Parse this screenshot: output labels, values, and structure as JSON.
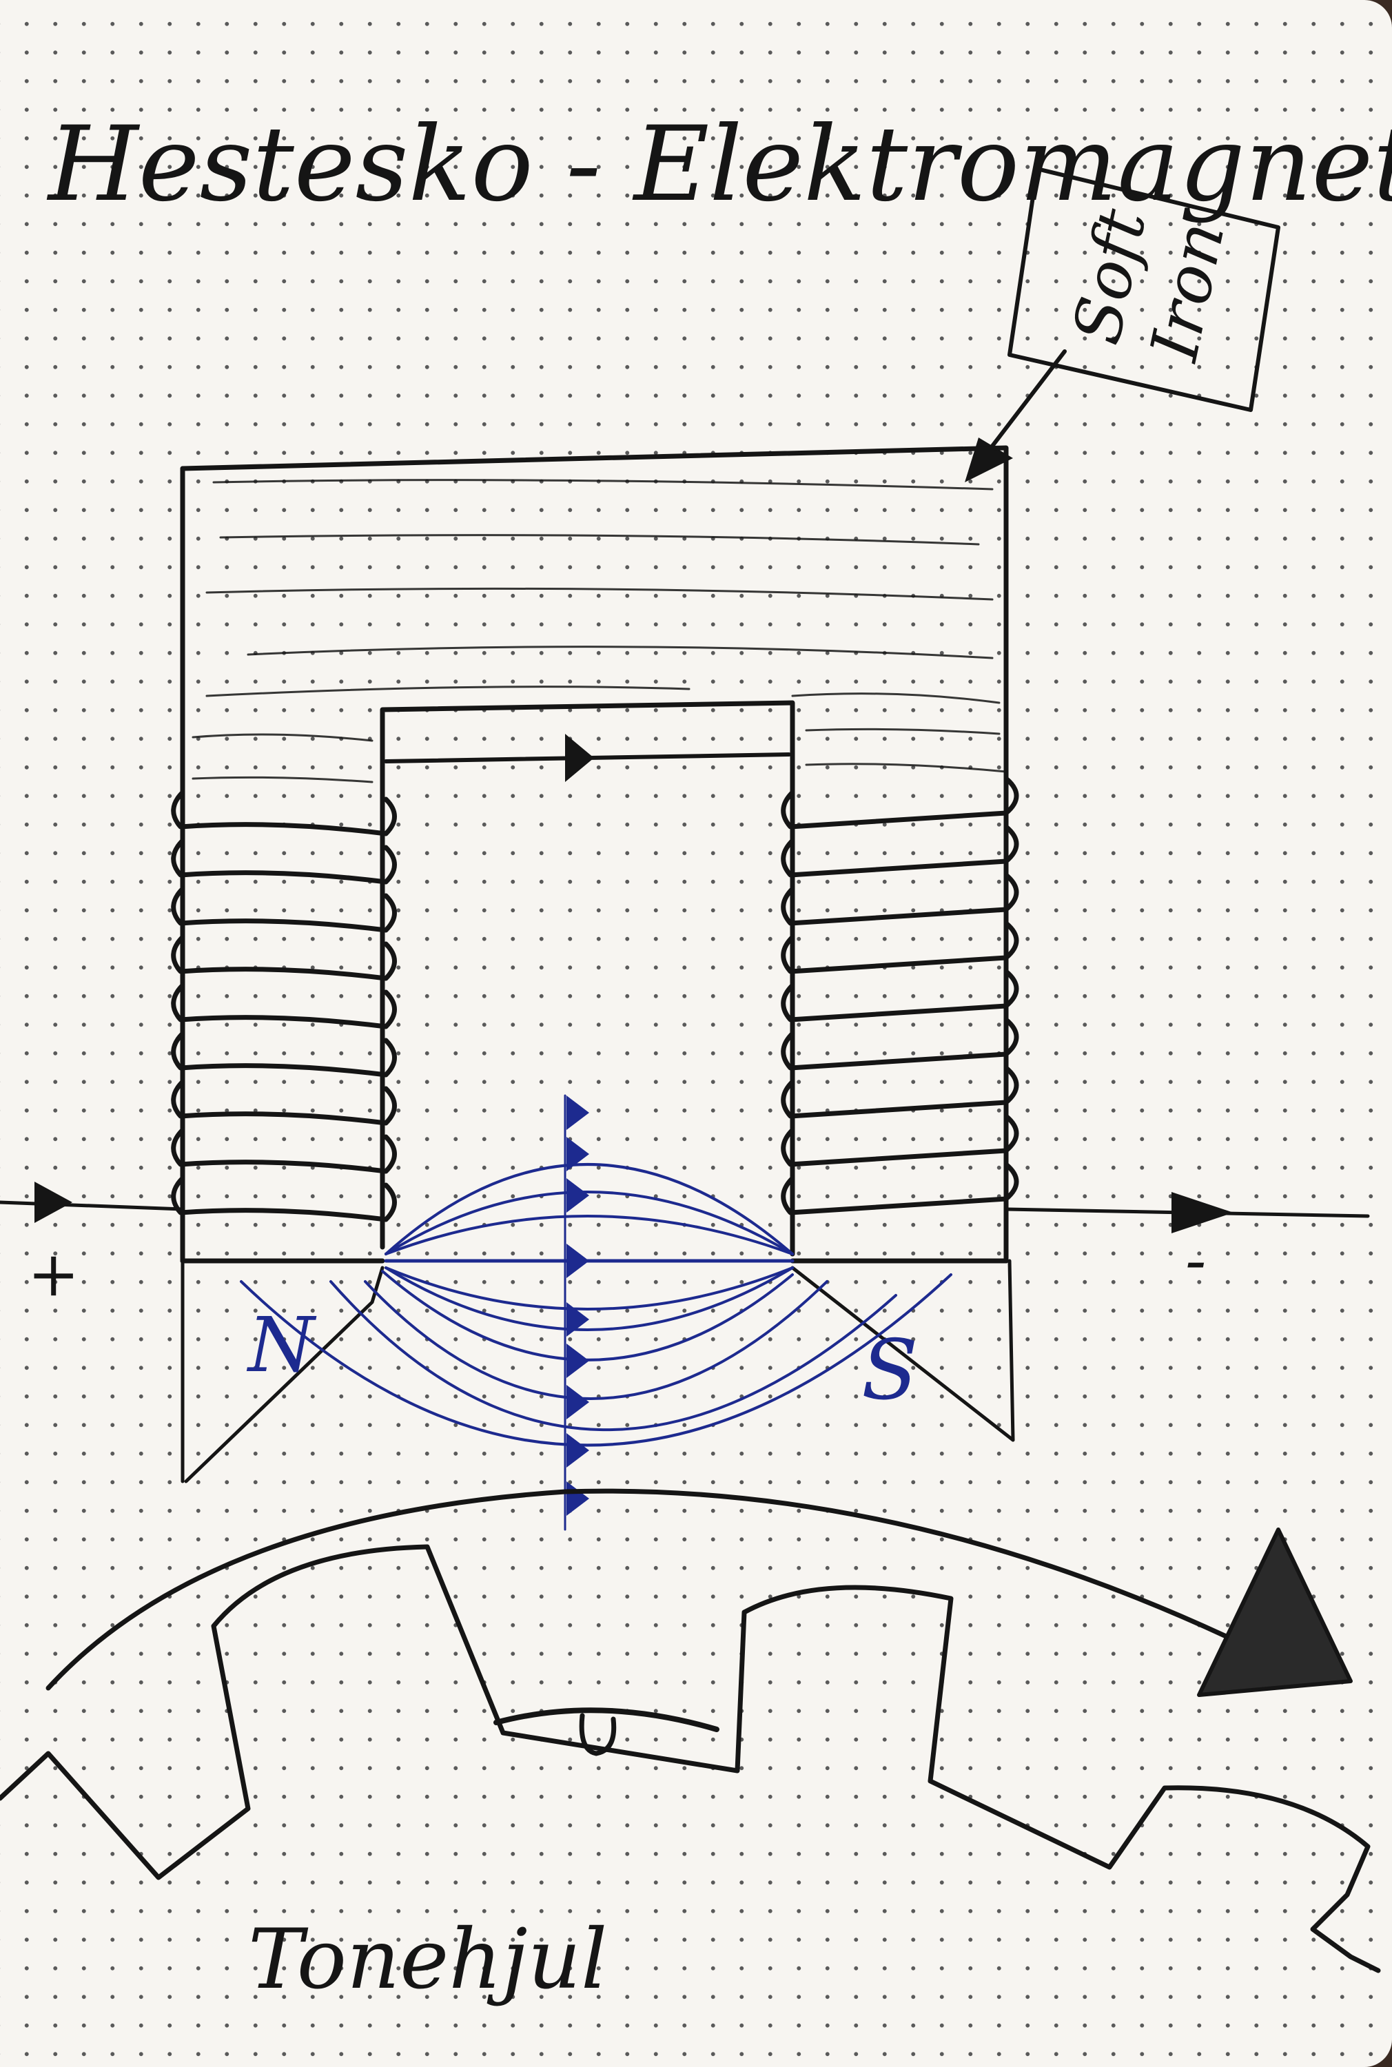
{
  "title": "Hestesko - Elektromagnet",
  "core_label": {
    "line1": "Soft",
    "line2": "Iron"
  },
  "poles": {
    "north": "N",
    "south": "S"
  },
  "terminals": {
    "plus": "+",
    "minus": "-"
  },
  "wheel_label": "Tonehjul",
  "colors": {
    "ink": "#151515",
    "field": "#1d2a8f",
    "paper": "#f7f5f1"
  }
}
